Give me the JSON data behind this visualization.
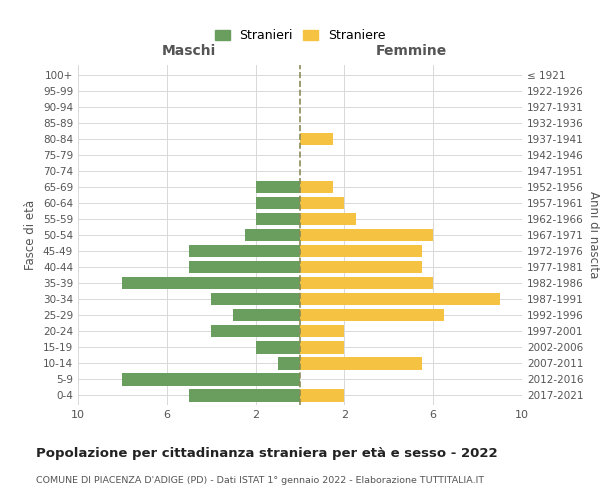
{
  "age_groups": [
    "0-4",
    "5-9",
    "10-14",
    "15-19",
    "20-24",
    "25-29",
    "30-34",
    "35-39",
    "40-44",
    "45-49",
    "50-54",
    "55-59",
    "60-64",
    "65-69",
    "70-74",
    "75-79",
    "80-84",
    "85-89",
    "90-94",
    "95-99",
    "100+"
  ],
  "birth_years": [
    "2017-2021",
    "2012-2016",
    "2007-2011",
    "2002-2006",
    "1997-2001",
    "1992-1996",
    "1987-1991",
    "1982-1986",
    "1977-1981",
    "1972-1976",
    "1967-1971",
    "1962-1966",
    "1957-1961",
    "1952-1956",
    "1947-1951",
    "1942-1946",
    "1937-1941",
    "1932-1936",
    "1927-1931",
    "1922-1926",
    "≤ 1921"
  ],
  "maschi": [
    5,
    8,
    1,
    2,
    4,
    3,
    4,
    8,
    5,
    5,
    2.5,
    2,
    2,
    2,
    0,
    0,
    0,
    0,
    0,
    0,
    0
  ],
  "femmine": [
    2,
    0,
    5.5,
    2,
    2,
    6.5,
    9,
    6,
    5.5,
    5.5,
    6,
    2.5,
    2,
    1.5,
    0,
    0,
    1.5,
    0,
    0,
    0,
    0
  ],
  "color_maschi": "#6a9e5f",
  "color_femmine": "#f5c242",
  "center_line_color": "#8b8b5a",
  "title": "Popolazione per cittadinanza straniera per età e sesso - 2022",
  "subtitle": "COMUNE DI PIACENZA D'ADIGE (PD) - Dati ISTAT 1° gennaio 2022 - Elaborazione TUTTITALIA.IT",
  "xlabel_left": "Maschi",
  "xlabel_right": "Femmine",
  "ylabel_left": "Fasce di età",
  "ylabel_right": "Anni di nascita",
  "legend_stranieri": "Stranieri",
  "legend_straniere": "Straniere",
  "xlim": 10,
  "background_color": "#ffffff",
  "grid_color": "#d8d8d8"
}
